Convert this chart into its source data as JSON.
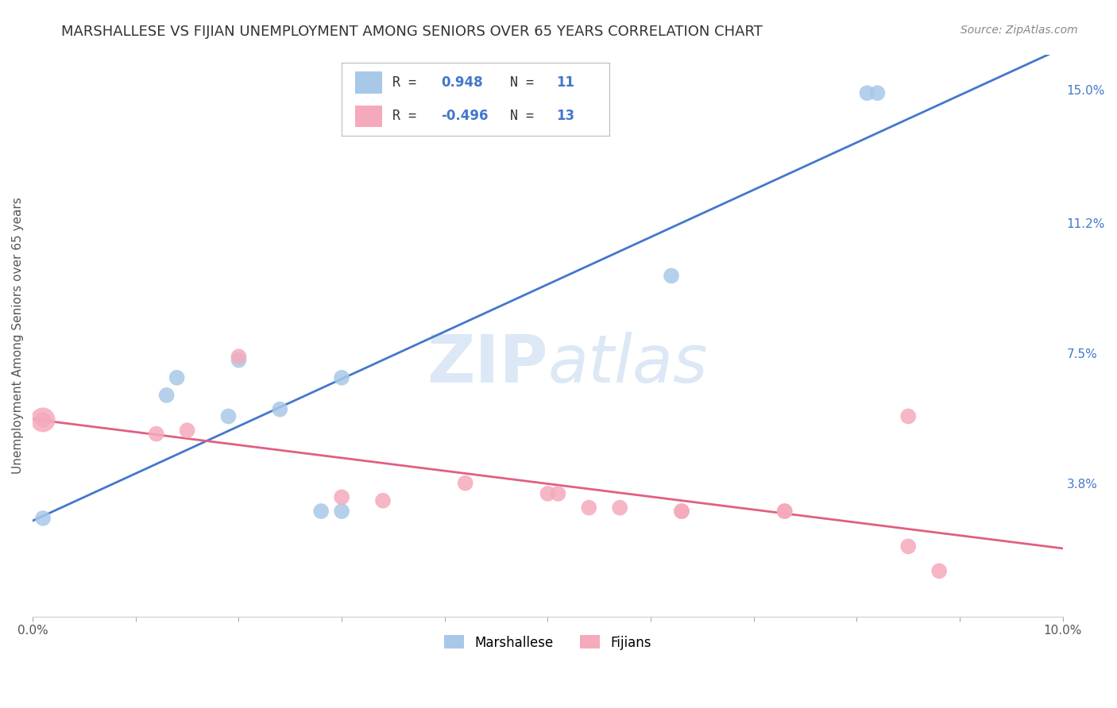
{
  "title": "MARSHALLESE VS FIJIAN UNEMPLOYMENT AMONG SENIORS OVER 65 YEARS CORRELATION CHART",
  "source": "Source: ZipAtlas.com",
  "ylabel": "Unemployment Among Seniors over 65 years",
  "xlim": [
    0.0,
    0.1
  ],
  "ylim": [
    0.0,
    0.16
  ],
  "xticks": [
    0.0,
    0.01,
    0.02,
    0.03,
    0.04,
    0.05,
    0.06,
    0.07,
    0.08,
    0.09,
    0.1
  ],
  "xticklabels": [
    "0.0%",
    "",
    "",
    "",
    "",
    "",
    "",
    "",
    "",
    "",
    "10.0%"
  ],
  "ytick_values": [
    0.038,
    0.075,
    0.112,
    0.15
  ],
  "ytick_labels": [
    "3.8%",
    "7.5%",
    "11.2%",
    "15.0%"
  ],
  "marshallese_x": [
    0.001,
    0.013,
    0.014,
    0.019,
    0.02,
    0.024,
    0.03,
    0.03,
    0.028,
    0.062,
    0.081,
    0.082
  ],
  "marshallese_y": [
    0.028,
    0.063,
    0.068,
    0.057,
    0.073,
    0.059,
    0.068,
    0.03,
    0.03,
    0.097,
    0.149,
    0.149
  ],
  "fijian_x": [
    0.001,
    0.012,
    0.015,
    0.02,
    0.03,
    0.042,
    0.051,
    0.054,
    0.063,
    0.073,
    0.085
  ],
  "fijian_y": [
    0.056,
    0.052,
    0.053,
    0.074,
    0.034,
    0.038,
    0.035,
    0.031,
    0.03,
    0.03,
    0.057
  ],
  "fijian_x2": [
    0.034,
    0.05,
    0.057,
    0.063,
    0.073,
    0.085,
    0.088
  ],
  "fijian_y2": [
    0.033,
    0.035,
    0.031,
    0.03,
    0.03,
    0.02,
    0.013
  ],
  "marshallese_color": "#a8c8e8",
  "fijian_color": "#f5aabb",
  "blue_line_color": "#4477cc",
  "pink_line_color": "#e06080",
  "watermark_zip": "ZIP",
  "watermark_atlas": "atlas",
  "watermark_color": "#dce8f5",
  "background_color": "#ffffff",
  "grid_color": "#dddddd",
  "legend_text_color": "#4477cc",
  "legend_label_color": "#444444"
}
